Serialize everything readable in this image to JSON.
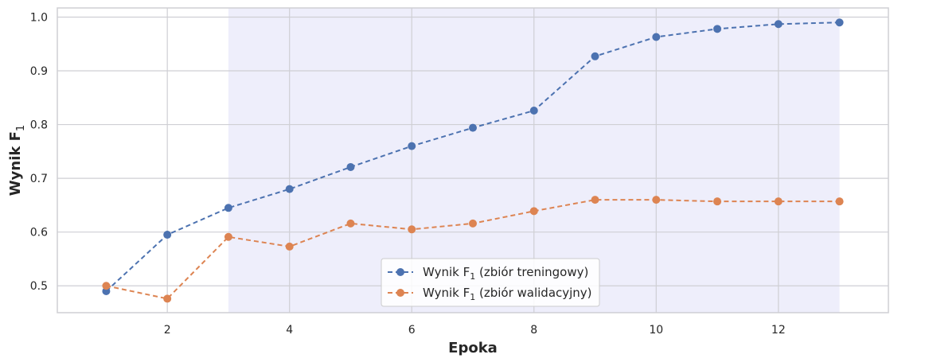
{
  "chart_data": {
    "type": "line",
    "xlabel": "Epoka",
    "ylabel": "Wynik F",
    "ylabel_subscript": "1",
    "xlim": [
      0.2,
      13.8
    ],
    "ylim": [
      0.45,
      1.017
    ],
    "xticks": [
      2,
      4,
      6,
      8,
      10,
      12
    ],
    "yticks": [
      0.5,
      0.6,
      0.7,
      0.8,
      0.9,
      1.0
    ],
    "grid": true,
    "highlight_span": [
      3,
      13
    ],
    "legend_position": "lower-center",
    "x": [
      1,
      2,
      3,
      4,
      5,
      6,
      7,
      8,
      9,
      10,
      11,
      12,
      13
    ],
    "series": [
      {
        "name": "Wynik F₁ (zbiór treningowy)",
        "name_parts": [
          "Wynik F",
          "1",
          " (zbiór treningowy)"
        ],
        "color": "#4c72b0",
        "values": [
          0.49,
          0.595,
          0.645,
          0.68,
          0.721,
          0.76,
          0.794,
          0.826,
          0.927,
          0.963,
          0.978,
          0.987,
          0.99
        ]
      },
      {
        "name": "Wynik F₁ (zbiór walidacyjny)",
        "name_parts": [
          "Wynik F",
          "1",
          " (zbiór walidacyjny)"
        ],
        "color": "#dd8452",
        "values": [
          0.5,
          0.476,
          0.591,
          0.573,
          0.616,
          0.605,
          0.616,
          0.639,
          0.66,
          0.66,
          0.657,
          0.657,
          0.657
        ]
      }
    ],
    "colors": {
      "span_fill": "#eeeefb",
      "grid": "#cfcfd4",
      "frame": "#cfcfd4"
    }
  }
}
